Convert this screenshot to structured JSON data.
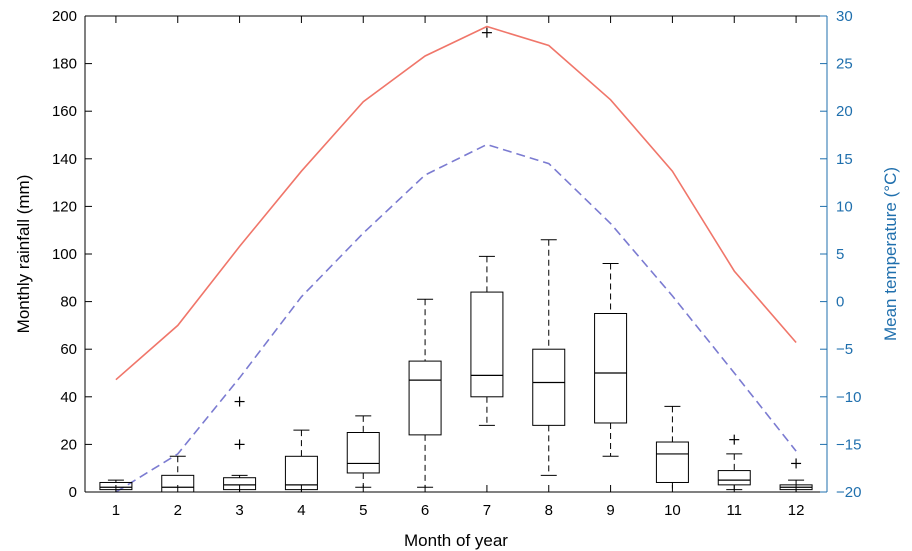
{
  "chart_data": {
    "type": "box",
    "xlabel": "Month of year",
    "ylabel_left": "Monthly rainfall (mm)",
    "ylabel_right": "Mean temperature (°C)",
    "categories": [
      "1",
      "2",
      "3",
      "4",
      "5",
      "6",
      "7",
      "8",
      "9",
      "10",
      "11",
      "12"
    ],
    "ylim_left": [
      0,
      200
    ],
    "yticks_left": [
      "0",
      "20",
      "40",
      "60",
      "80",
      "100",
      "120",
      "140",
      "160",
      "180",
      "200"
    ],
    "ylim_right": [
      -20,
      30
    ],
    "yticks_right": [
      "−20",
      "−15",
      "−10",
      "−5",
      "0",
      "5",
      "10",
      "15",
      "20",
      "25",
      "30"
    ],
    "grid": false,
    "colors": {
      "box": "#000000",
      "right_axis": "#1f6fad",
      "max_temp_line": "#f0766a",
      "mean_temp_line": "#7b7bd1"
    },
    "rainfall_boxes": [
      {
        "x": 1,
        "whisker_low": 0,
        "q1": 1,
        "median": 2,
        "q3": 4,
        "whisker_high": 5,
        "outliers": []
      },
      {
        "x": 2,
        "whisker_low": 0,
        "q1": 0,
        "median": 2,
        "q3": 7,
        "whisker_high": 15,
        "outliers": []
      },
      {
        "x": 3,
        "whisker_low": 0,
        "q1": 1,
        "median": 3,
        "q3": 6,
        "whisker_high": 7,
        "outliers": [
          20,
          38
        ]
      },
      {
        "x": 4,
        "whisker_low": 0,
        "q1": 1,
        "median": 3,
        "q3": 15,
        "whisker_high": 26,
        "outliers": []
      },
      {
        "x": 5,
        "whisker_low": 2,
        "q1": 8,
        "median": 12,
        "q3": 25,
        "whisker_high": 32,
        "outliers": []
      },
      {
        "x": 6,
        "whisker_low": 2,
        "q1": 24,
        "median": 47,
        "q3": 55,
        "whisker_high": 81,
        "outliers": []
      },
      {
        "x": 7,
        "whisker_low": 28,
        "q1": 40,
        "median": 49,
        "q3": 84,
        "whisker_high": 99,
        "outliers": [
          193
        ]
      },
      {
        "x": 8,
        "whisker_low": 7,
        "q1": 28,
        "median": 46,
        "q3": 60,
        "whisker_high": 106,
        "outliers": []
      },
      {
        "x": 9,
        "whisker_low": 15,
        "q1": 29,
        "median": 50,
        "q3": 75,
        "whisker_high": 96,
        "outliers": []
      },
      {
        "x": 10,
        "whisker_low": 0,
        "q1": 4,
        "median": 16,
        "q3": 21,
        "whisker_high": 36,
        "outliers": []
      },
      {
        "x": 11,
        "whisker_low": 1,
        "q1": 3,
        "median": 5,
        "q3": 9,
        "whisker_high": 16,
        "outliers": [
          22
        ]
      },
      {
        "x": 12,
        "whisker_low": 0,
        "q1": 1,
        "median": 2,
        "q3": 3,
        "whisker_high": 5,
        "outliers": [
          12
        ]
      }
    ],
    "temperature_series": [
      {
        "style": "solid",
        "color": "#f0766a",
        "values": [
          -8.2,
          -2.5,
          5.8,
          13.7,
          21.0,
          25.8,
          28.9,
          26.9,
          21.2,
          13.7,
          3.2,
          -4.3
        ]
      },
      {
        "style": "dashed",
        "color": "#7b7bd1",
        "values": [
          -20.0,
          -16.0,
          -8.0,
          0.5,
          7.2,
          13.3,
          16.5,
          14.5,
          8.2,
          0.6,
          -7.5,
          -15.7
        ]
      }
    ]
  }
}
